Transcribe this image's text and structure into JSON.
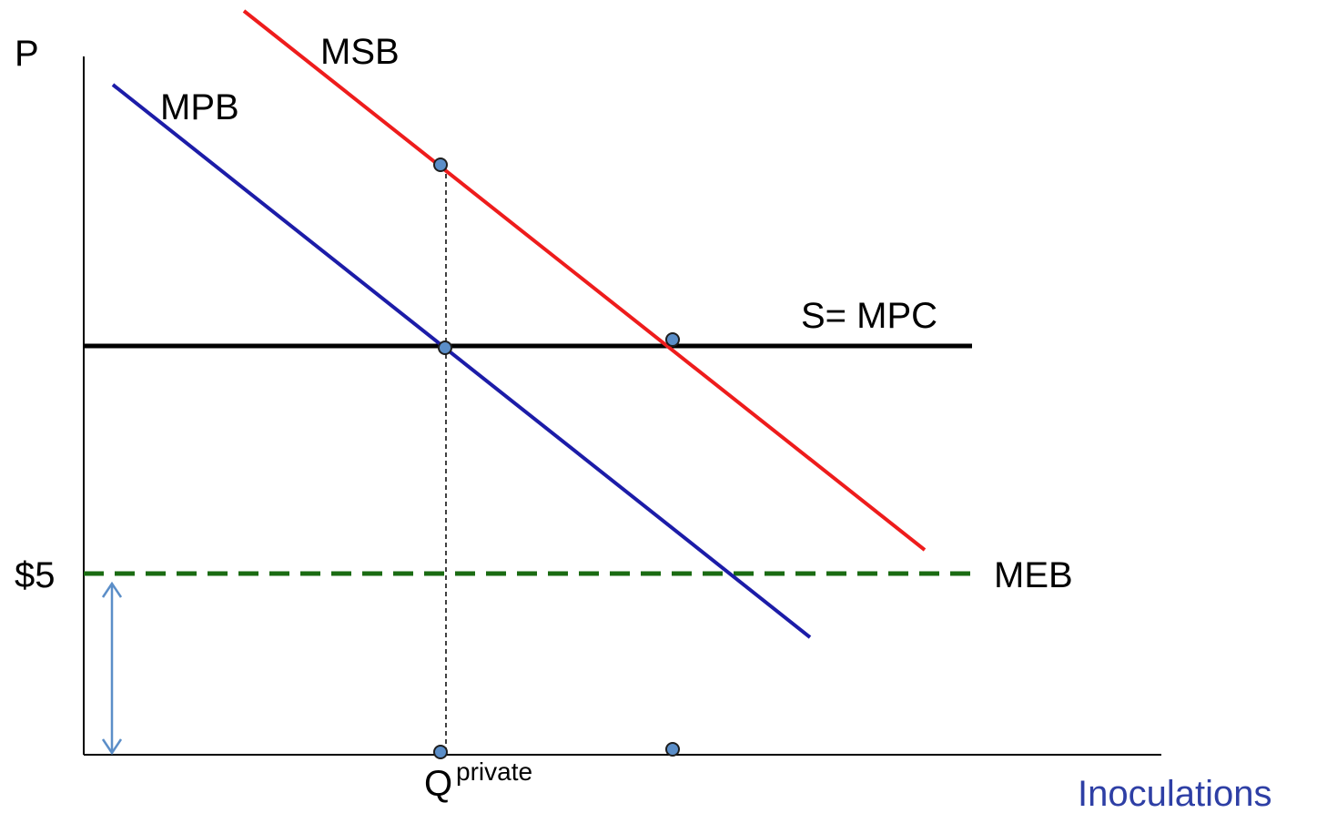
{
  "labels": {
    "y_axis": "P",
    "x_axis": "Inoculations",
    "msb": "MSB",
    "mpb": "MPB",
    "supply": "S= MPC",
    "meb": "MEB",
    "price_tick": "$5",
    "q_main": "Q",
    "q_sub": "private"
  },
  "colors": {
    "msb": "#ee1c1c",
    "mpb": "#1c1ca8",
    "supply": "#000000",
    "meb": "#1a6b12",
    "x_axis_label": "#2e3fa5",
    "arrow": "#5b8ec8",
    "dot_fill": "#5b8ec8",
    "dot_stroke": "#1e1e1e"
  }
}
